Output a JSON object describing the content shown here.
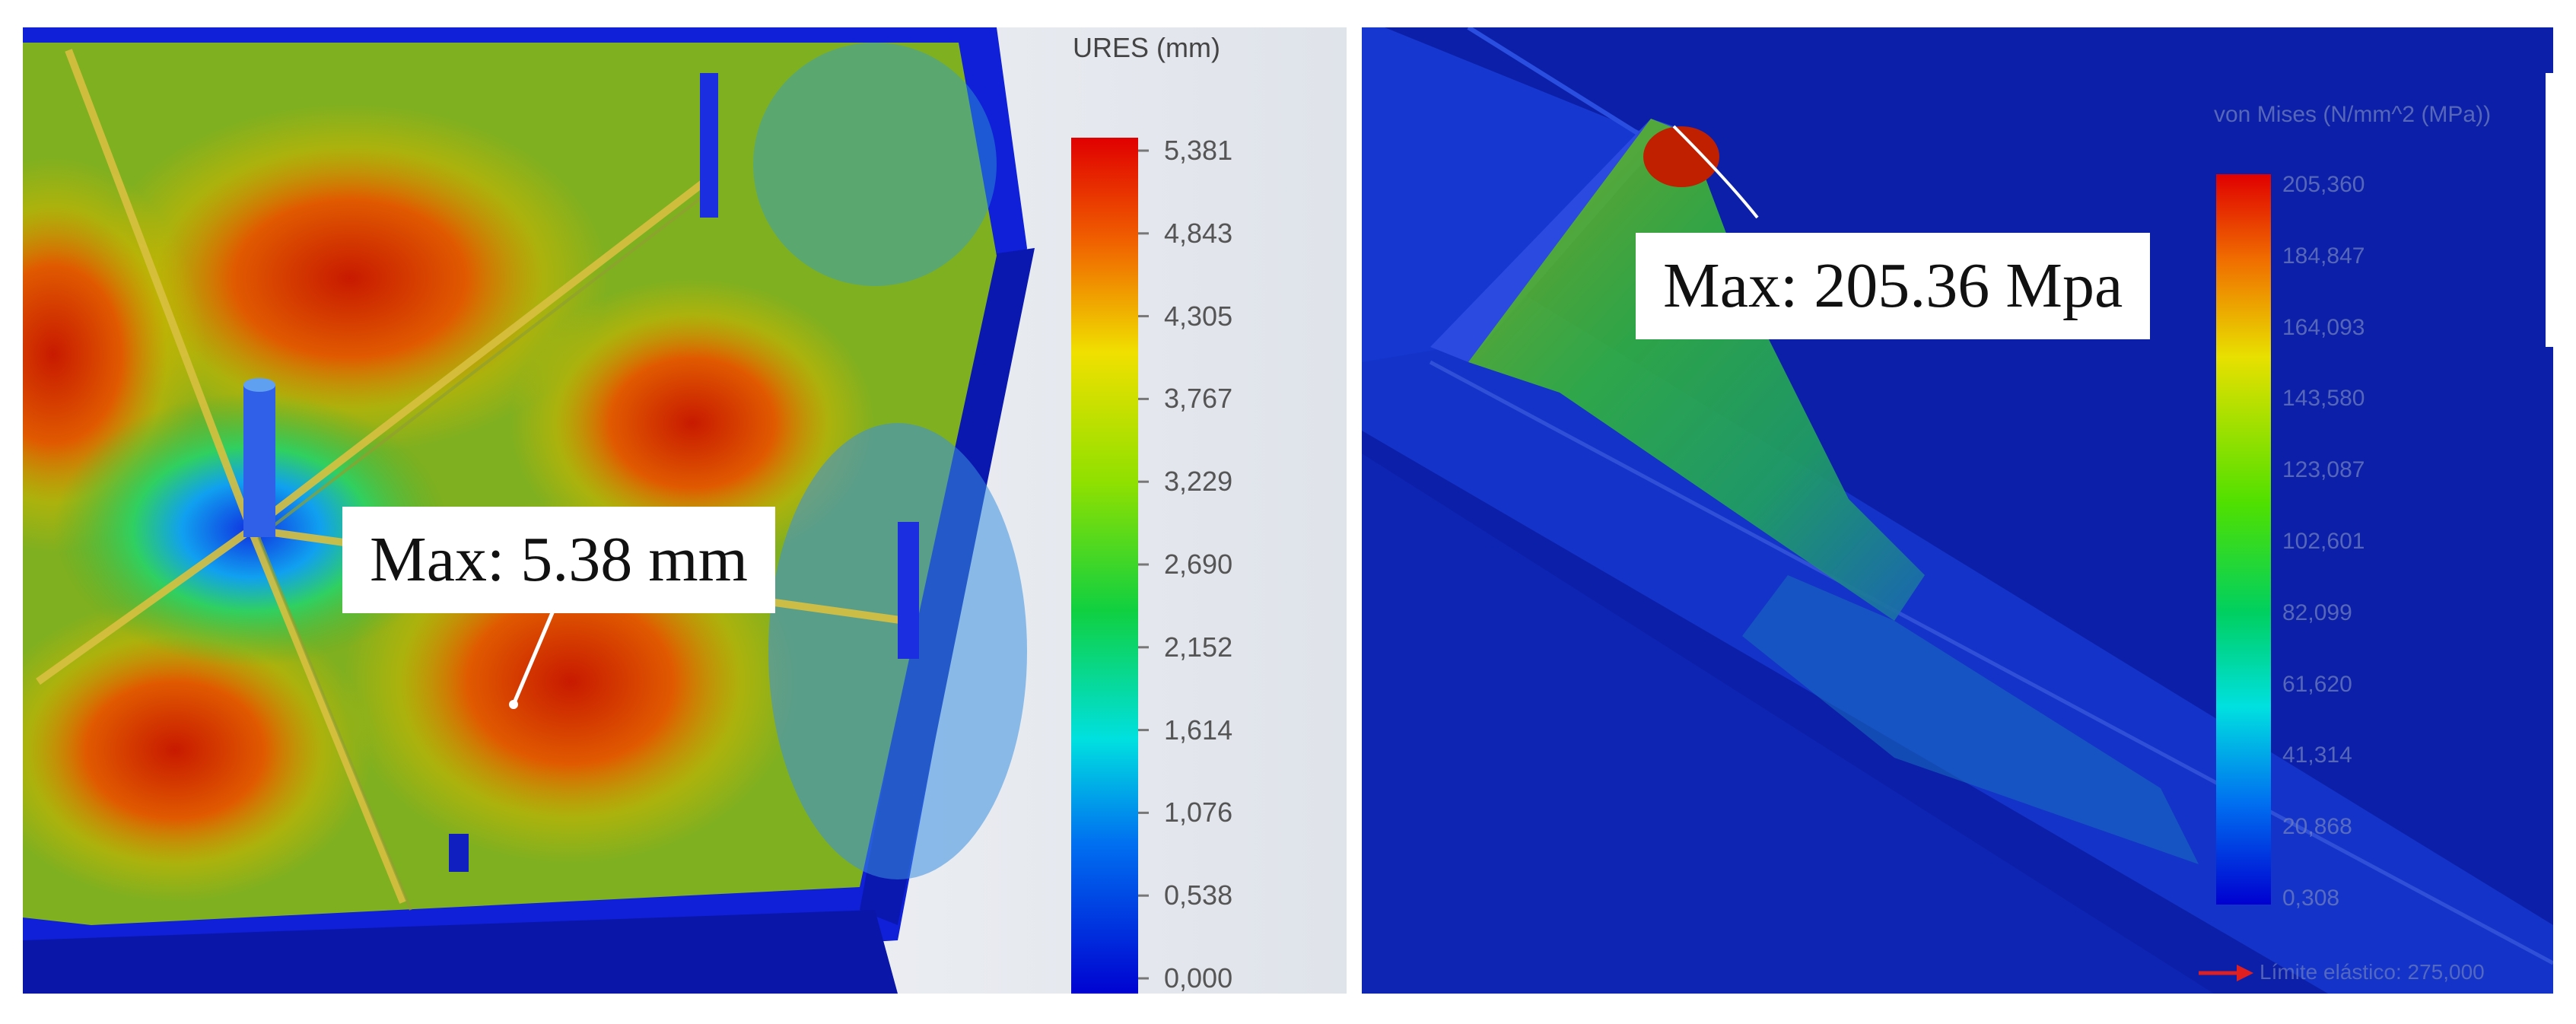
{
  "left": {
    "legend": {
      "title": "URES (mm)",
      "ticks": [
        "5,381",
        "4,843",
        "4,305",
        "3,767",
        "3,229",
        "2,690",
        "2,152",
        "1,614",
        "1,076",
        "0,538",
        "0,000"
      ],
      "colors": [
        "#e00000",
        "#f07000",
        "#f0e000",
        "#a0e000",
        "#30d020",
        "#00d060",
        "#00d0c0",
        "#00a0f0",
        "#0050f0",
        "#0010e0",
        "#0000c8"
      ]
    },
    "callout": "Max: 5.38 mm"
  },
  "right": {
    "legend": {
      "title": "von Mises (N/mm^2 (MPa))",
      "ticks": [
        "205,360",
        "184,847",
        "164,093",
        "143,580",
        "123,087",
        "102,601",
        "82,099",
        "61,620",
        "41,314",
        "20,868",
        "0,308"
      ]
    },
    "callout": "Max: 205.36 Mpa",
    "footnote": "Límite elástico: 275,000"
  }
}
